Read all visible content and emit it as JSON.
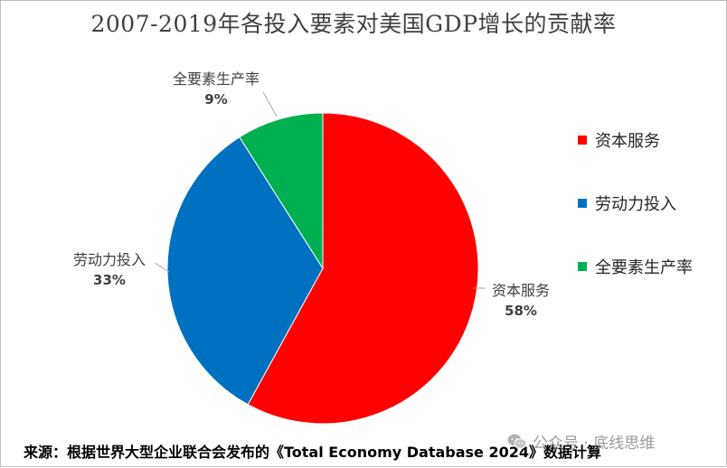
{
  "chart_data": {
    "type": "pie",
    "title": "2007-2019年各投入要素对美国GDP增长的贡献率",
    "categories": [
      "资本服务",
      "劳动力投入",
      "全要素生产率"
    ],
    "values": [
      58,
      33,
      9
    ],
    "value_labels": [
      "58%",
      "33%",
      "9%"
    ],
    "colors": [
      "#ff0000",
      "#0070c0",
      "#00b050"
    ],
    "legend_position": "right",
    "start_angle_deg": 0,
    "direction": "clockwise"
  },
  "source_text": "来源：根据世界大型企业联合会发布的《Total Economy Database 2024》数据计算",
  "watermark": {
    "icon": "wechat-icon",
    "text": "公众号 · 底线思维"
  }
}
